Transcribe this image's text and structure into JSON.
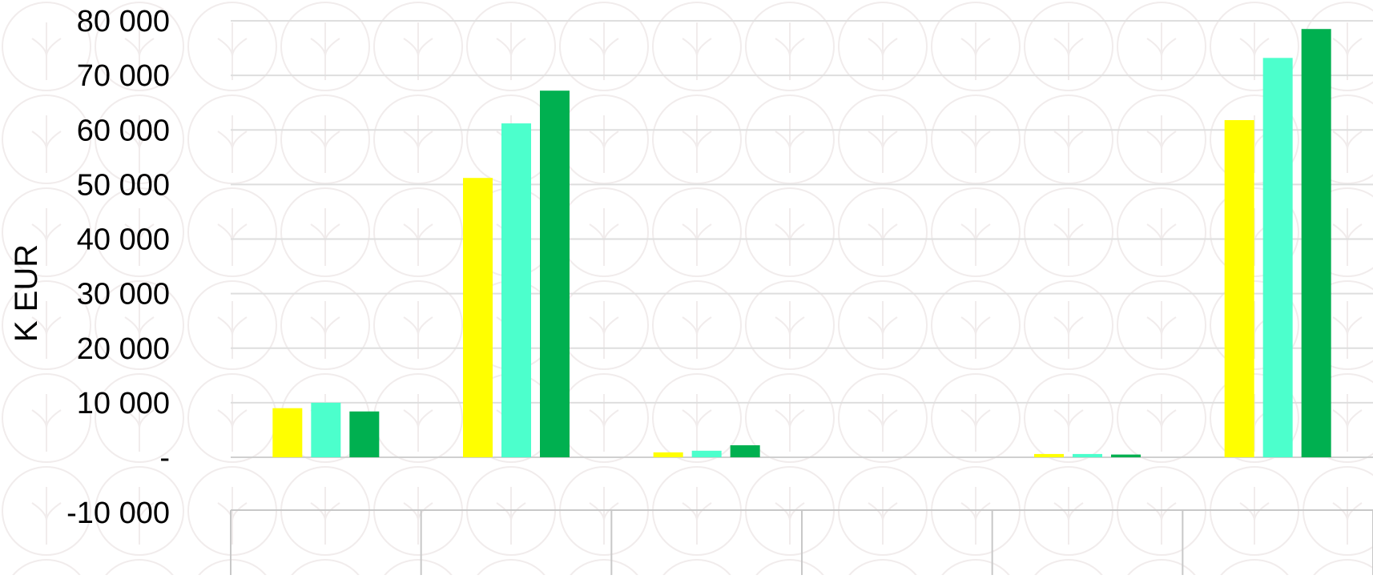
{
  "chart_data": {
    "type": "bar",
    "ylabel": "K EUR",
    "xlabel": "",
    "ylim": [
      -10000,
      80000
    ],
    "yticks": [
      80000,
      70000,
      60000,
      50000,
      40000,
      30000,
      20000,
      10000,
      0,
      -10000
    ],
    "ytick_labels": [
      "80 000",
      "70 000",
      "60 000",
      "50 000",
      "40 000",
      "30 000",
      "20 000",
      "10 000",
      "-",
      "-10 000"
    ],
    "categories": [
      "",
      "",
      "",
      "",
      "",
      ""
    ],
    "series": [
      {
        "color": "#FFFF00",
        "values": [
          9000,
          51200,
          900,
          0,
          600,
          61800
        ]
      },
      {
        "color": "#4CFFCC",
        "values": [
          10000,
          61200,
          1200,
          0,
          600,
          73200
        ]
      },
      {
        "color": "#00B050",
        "values": [
          8400,
          67200,
          2200,
          0,
          500,
          78500
        ]
      }
    ],
    "grid": true,
    "legend": "none"
  }
}
